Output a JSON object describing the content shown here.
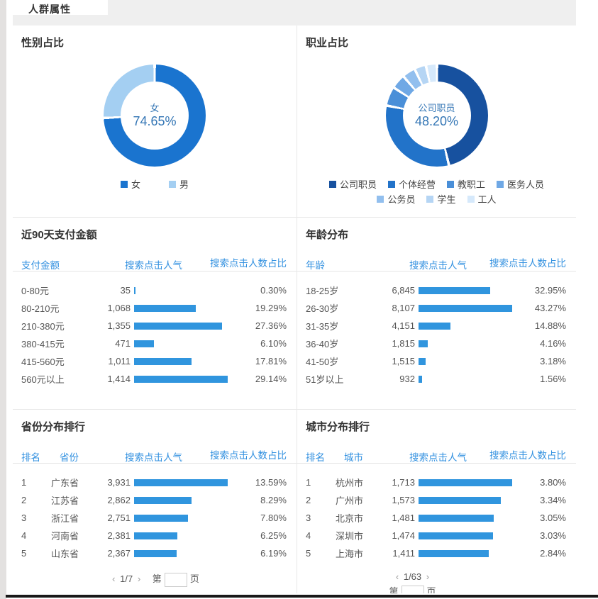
{
  "header": {
    "title": "人群属性"
  },
  "gender_panel": {
    "title": "性别占比",
    "center": {
      "label": "女",
      "value": "74.65%"
    },
    "legend": [
      {
        "label": "女",
        "color": "#1a74cf"
      },
      {
        "label": "男",
        "color": "#a4cff2"
      }
    ]
  },
  "occupation_panel": {
    "title": "职业占比",
    "center": {
      "label": "公司职员",
      "value": "48.20%"
    },
    "legend": [
      {
        "label": "公司职员",
        "color": "#17519f"
      },
      {
        "label": "个体经营",
        "color": "#2273c9"
      },
      {
        "label": "教职工",
        "color": "#4a8fd8"
      },
      {
        "label": "医务人员",
        "color": "#6fa8e5"
      },
      {
        "label": "公务员",
        "color": "#92bfee"
      },
      {
        "label": "学生",
        "color": "#b5d5f4"
      },
      {
        "label": "工人",
        "color": "#d6e9fb"
      }
    ]
  },
  "payment_panel": {
    "title": "近90天支付金额",
    "columns": [
      "支付金额",
      "搜索点击人气",
      "搜索点击人数占比"
    ],
    "rows": [
      {
        "label": "0-80元",
        "value": "35",
        "pct": "0.30%",
        "pct_num": 0.3
      },
      {
        "label": "80-210元",
        "value": "1,068",
        "pct": "19.29%",
        "pct_num": 19.29
      },
      {
        "label": "210-380元",
        "value": "1,355",
        "pct": "27.36%",
        "pct_num": 27.36
      },
      {
        "label": "380-415元",
        "value": "471",
        "pct": "6.10%",
        "pct_num": 6.1
      },
      {
        "label": "415-560元",
        "value": "1,011",
        "pct": "17.81%",
        "pct_num": 17.81
      },
      {
        "label": "560元以上",
        "value": "1,414",
        "pct": "29.14%",
        "pct_num": 29.14
      }
    ]
  },
  "age_panel": {
    "title": "年龄分布",
    "columns": [
      "年龄",
      "搜索点击人气",
      "搜索点击人数占比"
    ],
    "rows": [
      {
        "label": "18-25岁",
        "value": "6,845",
        "pct": "32.95%",
        "pct_num": 32.95
      },
      {
        "label": "26-30岁",
        "value": "8,107",
        "pct": "43.27%",
        "pct_num": 43.27
      },
      {
        "label": "31-35岁",
        "value": "4,151",
        "pct": "14.88%",
        "pct_num": 14.88
      },
      {
        "label": "36-40岁",
        "value": "1,815",
        "pct": "4.16%",
        "pct_num": 4.16
      },
      {
        "label": "41-50岁",
        "value": "1,515",
        "pct": "3.18%",
        "pct_num": 3.18
      },
      {
        "label": "51岁以上",
        "value": "932",
        "pct": "1.56%",
        "pct_num": 1.56
      }
    ]
  },
  "province_panel": {
    "title": "省份分布排行",
    "columns": [
      "排名",
      "省份",
      "搜索点击人气",
      "搜索点击人数占比"
    ],
    "rows": [
      {
        "rank": "1",
        "label": "广东省",
        "value": "3,931",
        "pct": "13.59%",
        "pct_num": 13.59
      },
      {
        "rank": "2",
        "label": "江苏省",
        "value": "2,862",
        "pct": "8.29%",
        "pct_num": 8.29
      },
      {
        "rank": "3",
        "label": "浙江省",
        "value": "2,751",
        "pct": "7.80%",
        "pct_num": 7.8
      },
      {
        "rank": "4",
        "label": "河南省",
        "value": "2,381",
        "pct": "6.25%",
        "pct_num": 6.25
      },
      {
        "rank": "5",
        "label": "山东省",
        "value": "2,367",
        "pct": "6.19%",
        "pct_num": 6.19
      }
    ],
    "pagination": {
      "prev": "‹",
      "page": "1/7",
      "next": "›",
      "jump_prefix": "第",
      "jump_suffix": "页",
      "jump_value": ""
    }
  },
  "city_panel": {
    "title": "城市分布排行",
    "columns": [
      "排名",
      "城市",
      "搜索点击人气",
      "搜索点击人数占比"
    ],
    "rows": [
      {
        "rank": "1",
        "label": "杭州市",
        "value": "1,713",
        "pct": "3.80%",
        "pct_num": 3.8
      },
      {
        "rank": "2",
        "label": "广州市",
        "value": "1,573",
        "pct": "3.34%",
        "pct_num": 3.34
      },
      {
        "rank": "3",
        "label": "北京市",
        "value": "1,481",
        "pct": "3.05%",
        "pct_num": 3.05
      },
      {
        "rank": "4",
        "label": "深圳市",
        "value": "1,474",
        "pct": "3.03%",
        "pct_num": 3.03
      },
      {
        "rank": "5",
        "label": "上海市",
        "value": "1,411",
        "pct": "2.84%",
        "pct_num": 2.84
      }
    ],
    "pagination": {
      "prev": "‹",
      "page": "1/63",
      "next": "›",
      "jump_prefix": "第",
      "jump_suffix": "页",
      "jump_value": ""
    }
  },
  "colors": {
    "bar": "#3095de",
    "header_text": "#3391e0",
    "band_bg": "#efefef"
  },
  "chart_data": [
    {
      "type": "pie",
      "title": "性别占比",
      "labels": [
        "女",
        "男"
      ],
      "values": [
        74.65,
        25.35
      ],
      "unit": "%",
      "colors": [
        "#1a74cf",
        "#a4cff2"
      ],
      "center_label": "女 74.65%",
      "legend_position": "bottom"
    },
    {
      "type": "pie",
      "title": "职业占比",
      "labels": [
        "公司职员",
        "个体经营",
        "教职工",
        "医务人员",
        "公务员",
        "学生",
        "工人"
      ],
      "values": [
        48.2,
        33.0,
        5.5,
        4.0,
        3.5,
        3.0,
        2.8
      ],
      "unit": "%",
      "colors": [
        "#17519f",
        "#2273c9",
        "#4a8fd8",
        "#6fa8e5",
        "#92bfee",
        "#b5d5f4",
        "#d6e9fb"
      ],
      "center_label": "公司职员 48.20%",
      "legend_position": "bottom"
    },
    {
      "type": "bar",
      "title": "近90天支付金额",
      "categories": [
        "0-80元",
        "80-210元",
        "210-380元",
        "380-415元",
        "415-560元",
        "560元以上"
      ],
      "series": [
        {
          "name": "搜索点击人气",
          "values": [
            35,
            1068,
            1355,
            471,
            1011,
            1414
          ]
        },
        {
          "name": "搜索点击人数占比",
          "values": [
            0.3,
            19.29,
            27.36,
            6.1,
            17.81,
            29.14
          ]
        }
      ]
    },
    {
      "type": "bar",
      "title": "年龄分布",
      "categories": [
        "18-25岁",
        "26-30岁",
        "31-35岁",
        "36-40岁",
        "41-50岁",
        "51岁以上"
      ],
      "series": [
        {
          "name": "搜索点击人气",
          "values": [
            6845,
            8107,
            4151,
            1815,
            1515,
            932
          ]
        },
        {
          "name": "搜索点击人数占比",
          "values": [
            32.95,
            43.27,
            14.88,
            4.16,
            3.18,
            1.56
          ]
        }
      ]
    },
    {
      "type": "bar",
      "title": "省份分布排行",
      "categories": [
        "广东省",
        "江苏省",
        "浙江省",
        "河南省",
        "山东省"
      ],
      "series": [
        {
          "name": "搜索点击人气",
          "values": [
            3931,
            2862,
            2751,
            2381,
            2367
          ]
        },
        {
          "name": "搜索点击人数占比",
          "values": [
            13.59,
            8.29,
            7.8,
            6.25,
            6.19
          ]
        }
      ]
    },
    {
      "type": "bar",
      "title": "城市分布排行",
      "categories": [
        "杭州市",
        "广州市",
        "北京市",
        "深圳市",
        "上海市"
      ],
      "series": [
        {
          "name": "搜索点击人气",
          "values": [
            1713,
            1573,
            1481,
            1474,
            1411
          ]
        },
        {
          "name": "搜索点击人数占比",
          "values": [
            3.8,
            3.34,
            3.05,
            3.03,
            2.84
          ]
        }
      ]
    }
  ]
}
